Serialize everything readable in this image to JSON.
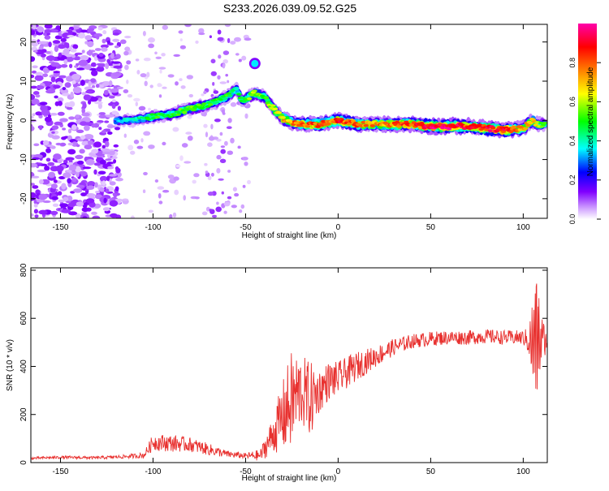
{
  "title": "S233.2026.039.09.52.G25",
  "chart_data": [
    {
      "type": "heatmap",
      "xlabel": "Height of straight line (km)",
      "ylabel": "Frequency (Hz)",
      "xlim": [
        -166,
        113
      ],
      "ylim": [
        -25,
        24.5
      ],
      "x_ticks": [
        -150,
        -100,
        -50,
        0,
        50,
        100
      ],
      "y_ticks": [
        -20,
        -10,
        0,
        10,
        20
      ],
      "colorbar": {
        "label": "Normalized spectral amplitude",
        "range": [
          0,
          1
        ],
        "ticks": [
          0.0,
          0.2,
          0.4,
          0.6,
          0.8
        ],
        "colors": [
          "#ffffff",
          "#cc99ff",
          "#8000ff",
          "#0000ff",
          "#00ffff",
          "#00ff00",
          "#ffff00",
          "#ff8000",
          "#ff0000",
          "#ff00aa"
        ]
      },
      "ridge": {
        "x": [
          -120,
          -110,
          -100,
          -90,
          -80,
          -70,
          -60,
          -55,
          -52,
          -48,
          -45,
          -40,
          -35,
          -30,
          -25,
          -20,
          -10,
          0,
          10,
          20,
          30,
          40,
          50,
          60,
          70,
          80,
          90,
          100,
          105,
          108,
          112
        ],
        "frequency": [
          0,
          0,
          1,
          1.5,
          3,
          4,
          6,
          8,
          5,
          6,
          7,
          6,
          3,
          0.5,
          -0.5,
          -1,
          -1,
          0,
          -1,
          -1,
          -1,
          -1,
          -1.5,
          -1.5,
          -1.5,
          -2,
          -2.5,
          -2,
          0,
          -1,
          -1
        ],
        "amplitude": [
          0.35,
          0.4,
          0.5,
          0.5,
          0.55,
          0.5,
          0.5,
          0.45,
          0.5,
          0.55,
          0.6,
          0.55,
          0.65,
          0.7,
          0.75,
          0.85,
          0.8,
          0.85,
          0.8,
          0.75,
          0.8,
          0.85,
          0.95,
          0.95,
          0.85,
          0.9,
          0.9,
          0.75,
          0.7,
          0.6,
          0.5
        ]
      },
      "features": [
        {
          "x": -45,
          "frequency": 14.5,
          "amplitude": 0.35
        }
      ]
    },
    {
      "type": "line",
      "xlabel": "Height of straight line (km)",
      "ylabel": "SNR (10 * v/v)",
      "xlim": [
        -166,
        113
      ],
      "ylim": [
        0,
        810
      ],
      "x_ticks": [
        -150,
        -100,
        -50,
        0,
        50,
        100
      ],
      "y_ticks": [
        0,
        200,
        400,
        600,
        800
      ],
      "series": [
        {
          "color": "#e8312f",
          "x": [
            -166,
            -150,
            -130,
            -115,
            -105,
            -100,
            -90,
            -80,
            -70,
            -60,
            -50,
            -42,
            -35,
            -30,
            -25,
            -20,
            -15,
            -10,
            -5,
            0,
            10,
            20,
            30,
            40,
            50,
            60,
            70,
            80,
            90,
            100,
            103,
            106,
            108,
            110,
            113
          ],
          "values": [
            18,
            22,
            20,
            25,
            30,
            85,
            80,
            75,
            55,
            35,
            28,
            30,
            120,
            190,
            260,
            300,
            260,
            300,
            340,
            350,
            400,
            440,
            480,
            505,
            515,
            520,
            520,
            525,
            520,
            520,
            505,
            480,
            520,
            510,
            505
          ],
          "noise": [
            5,
            6,
            6,
            8,
            12,
            35,
            35,
            30,
            25,
            15,
            12,
            25,
            80,
            150,
            210,
            150,
            160,
            90,
            80,
            70,
            60,
            45,
            35,
            30,
            30,
            30,
            30,
            30,
            30,
            30,
            60,
            300,
            250,
            120,
            20
          ]
        }
      ]
    }
  ]
}
